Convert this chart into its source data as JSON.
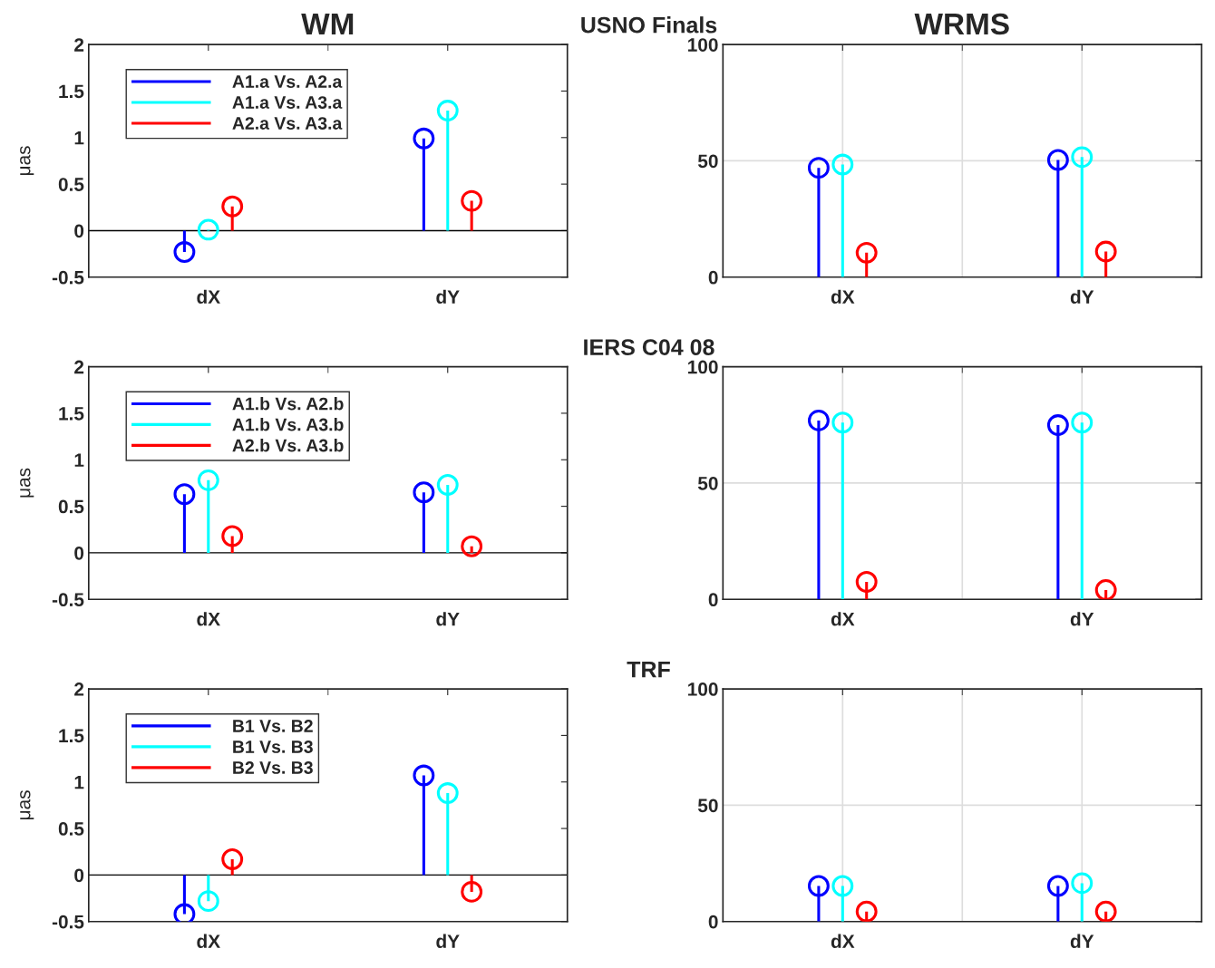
{
  "chart_data": [
    {
      "type": "lollipop",
      "title": "WM",
      "annotations": [
        "USNO Finals"
      ],
      "ylabel": "μas",
      "categories": [
        "dX",
        "dY"
      ],
      "ylim": [
        -0.5,
        2
      ],
      "yticks": [
        -0.5,
        0,
        0.5,
        1,
        1.5,
        2
      ],
      "grid": false,
      "legend": "top left",
      "marker": "circle",
      "ref_lines": [
        {
          "axis": "y",
          "value": 0,
          "color": "#000000"
        }
      ],
      "series": [
        {
          "name": "A1.a Vs. A2.a",
          "color": "#0000ff",
          "values": [
            -0.23,
            0.99
          ]
        },
        {
          "name": "A1.a Vs. A3.a",
          "color": "#00ffff",
          "values": [
            0.01,
            1.29
          ]
        },
        {
          "name": "A2.a Vs. A3.a",
          "color": "#ff0000",
          "values": [
            0.26,
            0.32
          ]
        }
      ]
    },
    {
      "type": "lollipop",
      "title": "WRMS",
      "categories": [
        "dX",
        "dY"
      ],
      "ylim": [
        0,
        100
      ],
      "yticks": [
        0,
        50,
        100
      ],
      "grid": true,
      "marker": "circle",
      "series": [
        {
          "color": "#0000ff",
          "values": [
            47,
            50.4
          ]
        },
        {
          "color": "#00ffff",
          "values": [
            48.4,
            51.6
          ]
        },
        {
          "color": "#ff0000",
          "values": [
            10.5,
            11
          ]
        }
      ]
    },
    {
      "type": "lollipop",
      "annotations": [
        "IERS C04 08"
      ],
      "ylabel": "μas",
      "categories": [
        "dX",
        "dY"
      ],
      "ylim": [
        -0.5,
        2
      ],
      "yticks": [
        -0.5,
        0,
        0.5,
        1,
        1.5,
        2
      ],
      "grid": false,
      "legend": "top left",
      "marker": "circle",
      "ref_lines": [
        {
          "axis": "y",
          "value": 0,
          "color": "#000000"
        }
      ],
      "series": [
        {
          "name": "A1.b Vs. A2.b",
          "color": "#0000ff",
          "values": [
            0.63,
            0.65
          ]
        },
        {
          "name": "A1.b Vs. A3.b",
          "color": "#00ffff",
          "values": [
            0.78,
            0.73
          ]
        },
        {
          "name": "A2.b Vs. A3.b",
          "color": "#ff0000",
          "values": [
            0.18,
            0.07
          ]
        }
      ]
    },
    {
      "type": "lollipop",
      "categories": [
        "dX",
        "dY"
      ],
      "ylim": [
        0,
        100
      ],
      "yticks": [
        0,
        50,
        100
      ],
      "grid": true,
      "marker": "circle",
      "series": [
        {
          "color": "#0000ff",
          "values": [
            76.9,
            74.9
          ]
        },
        {
          "color": "#00ffff",
          "values": [
            76,
            76
          ]
        },
        {
          "color": "#ff0000",
          "values": [
            7.5,
            4
          ]
        }
      ]
    },
    {
      "type": "lollipop",
      "annotations": [
        "TRF"
      ],
      "ylabel": "μas",
      "categories": [
        "dX",
        "dY"
      ],
      "ylim": [
        -0.5,
        2
      ],
      "yticks": [
        -0.5,
        0,
        0.5,
        1,
        1.5,
        2
      ],
      "grid": false,
      "legend": "top left",
      "marker": "circle",
      "ref_lines": [
        {
          "axis": "y",
          "value": 0,
          "color": "#000000"
        }
      ],
      "series": [
        {
          "name": "B1 Vs. B2",
          "color": "#0000ff",
          "values": [
            -0.42,
            1.07
          ]
        },
        {
          "name": "B1 Vs. B3",
          "color": "#00ffff",
          "values": [
            -0.28,
            0.88
          ]
        },
        {
          "name": "B2 Vs. B3",
          "color": "#ff0000",
          "values": [
            0.17,
            -0.18
          ]
        }
      ]
    },
    {
      "type": "lollipop",
      "categories": [
        "dX",
        "dY"
      ],
      "ylim": [
        0,
        100
      ],
      "yticks": [
        0,
        50,
        100
      ],
      "grid": true,
      "marker": "circle",
      "series": [
        {
          "color": "#0000ff",
          "values": [
            15.3,
            15.3
          ]
        },
        {
          "color": "#00ffff",
          "values": [
            15.3,
            16.5
          ]
        },
        {
          "color": "#ff0000",
          "values": [
            4.3,
            4.3
          ]
        }
      ]
    }
  ]
}
